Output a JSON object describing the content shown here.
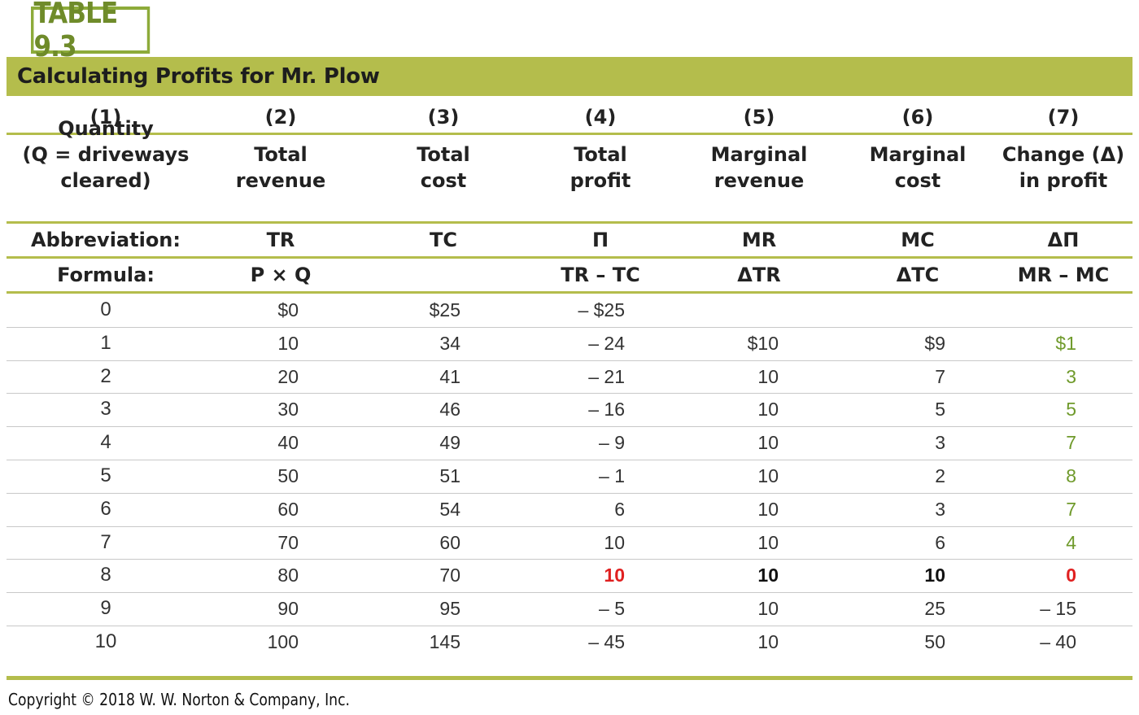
{
  "badge": "TABLE 9.3",
  "title": "Calculating Profits for Mr. Plow",
  "columns": [
    {
      "number": "(1)",
      "heading": [
        "Quantity",
        "(Q  =  driveways",
        "cleared)"
      ],
      "abbreviation": "Abbreviation:",
      "formula": "Formula:"
    },
    {
      "number": "(2)",
      "heading": [
        "Total",
        "revenue"
      ],
      "abbreviation": "TR",
      "formula": "P × Q"
    },
    {
      "number": "(3)",
      "heading": [
        "Total",
        "cost"
      ],
      "abbreviation": "TC",
      "formula": ""
    },
    {
      "number": "(4)",
      "heading": [
        "Total",
        "profit"
      ],
      "abbreviation": "Π",
      "formula": "TR  –  TC"
    },
    {
      "number": "(5)",
      "heading": [
        "Marginal",
        "revenue"
      ],
      "abbreviation": "MR",
      "formula": "ΔTR"
    },
    {
      "number": "(6)",
      "heading": [
        "Marginal",
        "cost"
      ],
      "abbreviation": "MC",
      "formula": "ΔTC"
    },
    {
      "number": "(7)",
      "heading": [
        "Change (Δ)",
        "in profit"
      ],
      "abbreviation": "ΔΠ",
      "formula": "MR  –  MC"
    }
  ],
  "rows": [
    [
      "0",
      "$0",
      "$25",
      "– $25",
      "",
      "",
      ""
    ],
    [
      "1",
      "10",
      "34",
      "– 24",
      "$10",
      "$9",
      "$1"
    ],
    [
      "2",
      "20",
      "41",
      "– 21",
      "10",
      "7",
      "3"
    ],
    [
      "3",
      "30",
      "46",
      "– 16",
      "10",
      "5",
      "5"
    ],
    [
      "4",
      "40",
      "49",
      "– 9",
      "10",
      "3",
      "7"
    ],
    [
      "5",
      "50",
      "51",
      "– 1",
      "10",
      "2",
      "8"
    ],
    [
      "6",
      "60",
      "54",
      "6",
      "10",
      "3",
      "7"
    ],
    [
      "7",
      "70",
      "60",
      "10",
      "10",
      "6",
      "4"
    ],
    [
      "8",
      "80",
      "70",
      "10",
      "10",
      "10",
      "0"
    ],
    [
      "9",
      "90",
      "95",
      "– 5",
      "10",
      "25",
      "– 15"
    ],
    [
      "10",
      "100",
      "145",
      "– 45",
      "10",
      "50",
      "– 40"
    ]
  ],
  "colors": {
    "accent": "#b4bd4c",
    "badge": "#6f8b2a",
    "positive_change": "#6f9a2b",
    "highlight": "#e02020"
  },
  "footer": "Copyright © 2018 W. W. Norton & Company, Inc."
}
